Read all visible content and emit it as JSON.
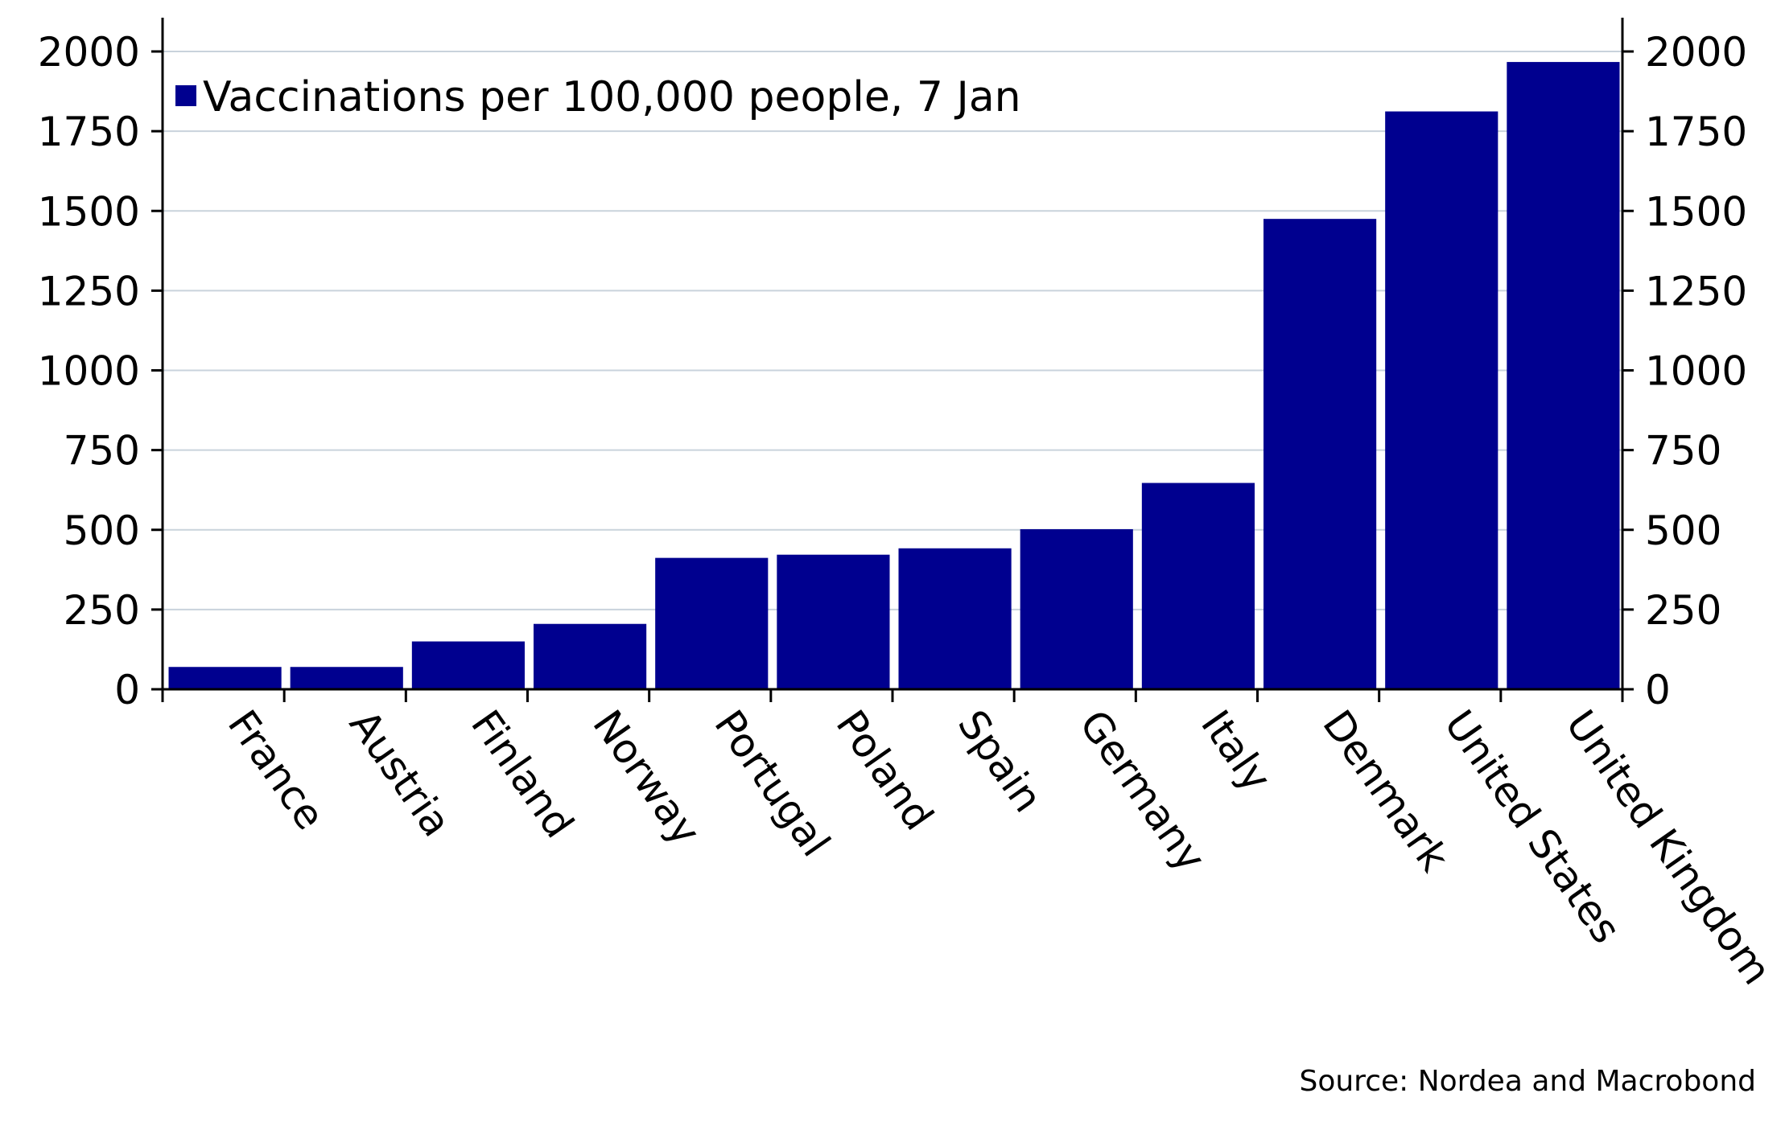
{
  "chart_data": {
    "type": "bar",
    "title": "",
    "xlabel": "",
    "ylabel": "",
    "categories": [
      "France",
      "Austria",
      "Finland",
      "Norway",
      "Portugal",
      "Poland",
      "Spain",
      "Germany",
      "Italy",
      "Denmark",
      "United States",
      "United Kingdom"
    ],
    "series": [
      {
        "name": "Vaccinations per 100,000 people, 7 Jan",
        "color": "#00008f",
        "values": [
          70,
          70,
          150,
          205,
          412,
          422,
          442,
          502,
          647,
          1475,
          1812,
          1967
        ]
      }
    ],
    "ylim": [
      0,
      2000
    ],
    "yticks": [
      0,
      250,
      500,
      750,
      1000,
      1250,
      1500,
      1750,
      2000
    ],
    "y_axis_both_sides": true,
    "grid": true,
    "legend_position": "top-left",
    "category_label_rotation": "diagonal-down",
    "source": "Source: Nordea and Macrobond"
  }
}
